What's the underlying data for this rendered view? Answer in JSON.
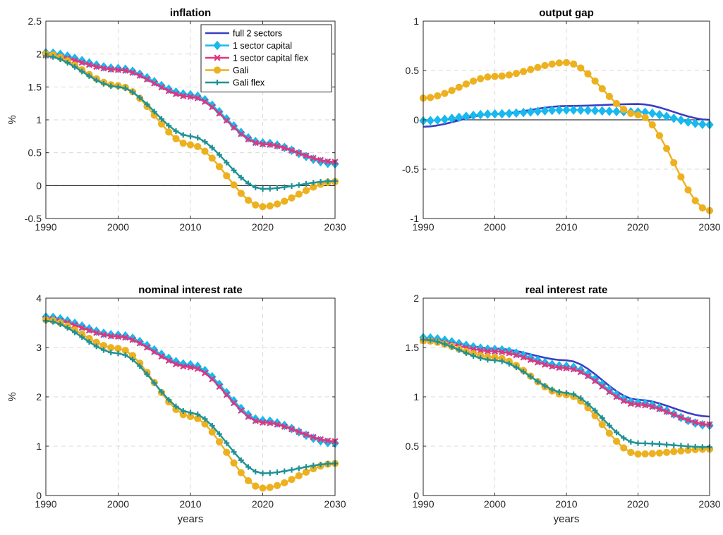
{
  "chart_data": [
    {
      "type": "line",
      "title": "inflation",
      "xlabel": "",
      "ylabel": "%",
      "xlim": [
        1990,
        2030
      ],
      "ylim": [
        -0.5,
        2.5
      ],
      "xticks": [
        "1990",
        "2000",
        "2010",
        "2020",
        "2030"
      ],
      "yticks": [
        "-0.5",
        "0",
        "0.5",
        "1",
        "1.5",
        "2",
        "2.5"
      ],
      "grid": true,
      "zero_line": true,
      "legend": "top-right",
      "anchors": {
        "x": [
          1990,
          2000,
          2010,
          2020,
          2030
        ]
      },
      "series": [
        {
          "name": "full 2 sectors",
          "key": "full",
          "y": [
            2.0,
            1.76,
            1.35,
            0.64,
            0.34
          ]
        },
        {
          "name": "1 sector capital",
          "key": "cap",
          "y": [
            2.02,
            1.78,
            1.38,
            0.65,
            0.33
          ]
        },
        {
          "name": "1 sector capital flex",
          "key": "capflex",
          "y": [
            1.98,
            1.76,
            1.35,
            0.63,
            0.36
          ]
        },
        {
          "name": "Gali",
          "key": "gali",
          "y": [
            2.0,
            1.52,
            0.62,
            -0.32,
            0.06
          ]
        },
        {
          "name": "Gali flex",
          "key": "galiflex",
          "y": [
            1.97,
            1.5,
            0.75,
            -0.05,
            0.07
          ]
        }
      ]
    },
    {
      "type": "line",
      "title": "output gap",
      "xlabel": "",
      "ylabel": "",
      "xlim": [
        1990,
        2030
      ],
      "ylim": [
        -1,
        1
      ],
      "xticks": [
        "1990",
        "2000",
        "2010",
        "2020",
        "2030"
      ],
      "yticks": [
        "-1",
        "-0.5",
        "0",
        "0.5",
        "1"
      ],
      "grid": true,
      "zero_line": true,
      "anchors": {
        "x": [
          1990,
          2000,
          2010,
          2020,
          2030
        ]
      },
      "series": [
        {
          "name": "full 2 sectors",
          "key": "full",
          "y": [
            -0.07,
            0.06,
            0.14,
            0.16,
            0.0
          ]
        },
        {
          "name": "1 sector capital",
          "key": "cap",
          "y": [
            -0.01,
            0.06,
            0.1,
            0.08,
            -0.05
          ]
        },
        {
          "name": "Gali",
          "key": "gali",
          "y": [
            0.22,
            0.44,
            0.58,
            0.05,
            -0.92
          ]
        }
      ]
    },
    {
      "type": "line",
      "title": "nominal interest rate",
      "xlabel": "years",
      "ylabel": "%",
      "xlim": [
        1990,
        2030
      ],
      "ylim": [
        0,
        4
      ],
      "xticks": [
        "1990",
        "2000",
        "2010",
        "2020",
        "2030"
      ],
      "yticks": [
        "0",
        "1",
        "2",
        "3",
        "4"
      ],
      "grid": true,
      "zero_line": false,
      "anchors": {
        "x": [
          1990,
          2000,
          2010,
          2020,
          2030
        ]
      },
      "series": [
        {
          "name": "full 2 sectors",
          "key": "full",
          "y": [
            3.6,
            3.22,
            2.62,
            1.5,
            1.07
          ]
        },
        {
          "name": "1 sector capital",
          "key": "cap",
          "y": [
            3.62,
            3.25,
            2.65,
            1.52,
            1.06
          ]
        },
        {
          "name": "1 sector capital flex",
          "key": "capflex",
          "y": [
            3.58,
            3.22,
            2.6,
            1.48,
            1.1
          ]
        },
        {
          "name": "Gali",
          "key": "gali",
          "y": [
            3.56,
            2.98,
            1.6,
            0.15,
            0.65
          ]
        },
        {
          "name": "Gali flex",
          "key": "galiflex",
          "y": [
            3.54,
            2.88,
            1.68,
            0.45,
            0.65
          ]
        }
      ]
    },
    {
      "type": "line",
      "title": "real interest rate",
      "xlabel": "years",
      "ylabel": "",
      "xlim": [
        1990,
        2030
      ],
      "ylim": [
        0,
        2
      ],
      "xticks": [
        "1990",
        "2000",
        "2010",
        "2020",
        "2030"
      ],
      "yticks": [
        "0",
        "0.5",
        "1",
        "1.5",
        "2"
      ],
      "grid": true,
      "zero_line": false,
      "anchors": {
        "x": [
          1990,
          2000,
          2010,
          2020,
          2030
        ]
      },
      "series": [
        {
          "name": "full 2 sectors",
          "key": "full",
          "y": [
            1.59,
            1.49,
            1.37,
            0.97,
            0.8
          ]
        },
        {
          "name": "1 sector capital",
          "key": "cap",
          "y": [
            1.6,
            1.48,
            1.31,
            0.94,
            0.71
          ]
        },
        {
          "name": "1 sector capital flex",
          "key": "capflex",
          "y": [
            1.57,
            1.46,
            1.29,
            0.92,
            0.72
          ]
        },
        {
          "name": "Gali",
          "key": "gali",
          "y": [
            1.57,
            1.4,
            1.02,
            0.42,
            0.47
          ]
        },
        {
          "name": "Gali flex",
          "key": "galiflex",
          "y": [
            1.58,
            1.37,
            1.04,
            0.53,
            0.49
          ]
        }
      ]
    }
  ],
  "styles": {
    "full": {
      "color": "#3a3ec4",
      "marker": "none"
    },
    "cap": {
      "color": "#17b9ee",
      "marker": "diamond"
    },
    "capflex": {
      "color": "#e0357f",
      "marker": "x"
    },
    "gali": {
      "color": "#edb120",
      "marker": "circle"
    },
    "galiflex": {
      "color": "#1f9296",
      "marker": "plus"
    }
  }
}
